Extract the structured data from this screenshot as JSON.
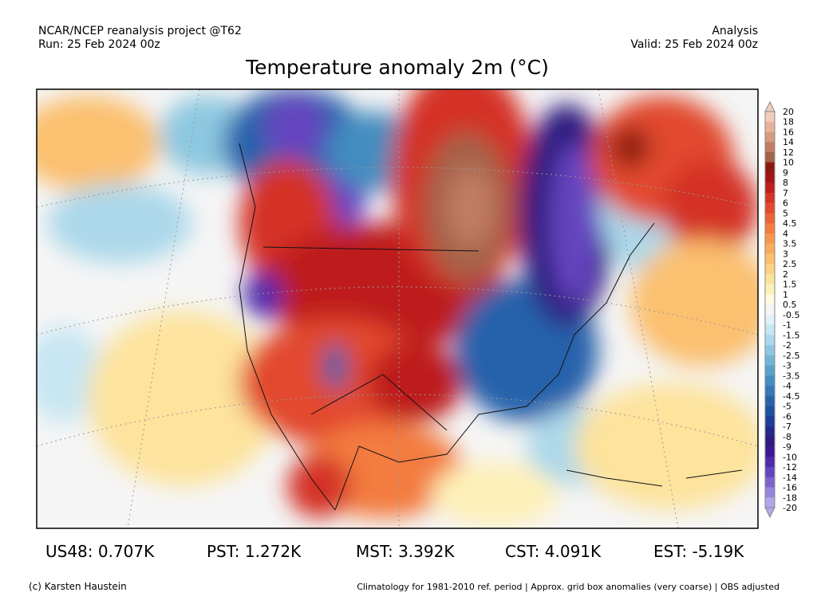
{
  "header": {
    "left_line1": "NCAR/NCEP reanalysis project @T62",
    "left_line2": "Run: 25 Feb 2024 00z",
    "right_line1": "Analysis",
    "right_line2": "Valid: 25 Feb 2024 00z"
  },
  "title": "Temperature anomaly 2m (°C)",
  "colorbar": {
    "labels": [
      "20",
      "18",
      "16",
      "14",
      "12",
      "10",
      "9",
      "8",
      "7",
      "6",
      "5",
      "4.5",
      "4",
      "3.5",
      "3",
      "2.5",
      "2",
      "1.5",
      "1",
      "0.5",
      "-0.5",
      "-1",
      "-1.5",
      "-2",
      "-2.5",
      "-3",
      "-3.5",
      "-4",
      "-4.5",
      "-5",
      "-6",
      "-7",
      "-8",
      "-9",
      "-10",
      "-12",
      "-14",
      "-16",
      "-18",
      "-20"
    ]
  },
  "regional_stats": [
    "US48: 0.707K",
    "PST: 1.272K",
    "MST: 3.392K",
    "CST: 4.091K",
    "EST: -5.19K"
  ],
  "footer": {
    "credit": "(c) Karsten Haustein",
    "note": "Climatology for 1981-2010 ref. period | Approx. grid box anomalies (very coarse) | OBS adjusted"
  }
}
